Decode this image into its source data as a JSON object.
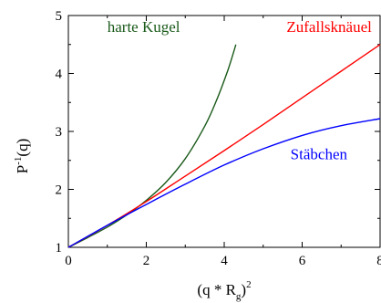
{
  "chart_data": {
    "type": "line",
    "xlabel": {
      "main": "(q * R",
      "sub": "g",
      "close": ")",
      "sup": "2"
    },
    "ylabel": {
      "main": "P",
      "sup": "-1",
      "tail": "(q)"
    },
    "xlim": [
      0,
      8
    ],
    "ylim": [
      1,
      5
    ],
    "x_ticks": [
      0,
      2,
      4,
      6,
      8
    ],
    "x_tick_labels": [
      "0",
      "2",
      "4",
      "6",
      "8"
    ],
    "y_ticks": [
      1,
      2,
      3,
      4,
      5
    ],
    "y_tick_labels": [
      "1",
      "2",
      "3",
      "4",
      "5"
    ],
    "grid": false,
    "series": [
      {
        "name": "harte Kugel",
        "color": "#1a5a1a",
        "x": [
          0,
          0.5,
          1.0,
          1.5,
          2.0,
          2.5,
          3.0,
          3.5,
          3.8,
          4.1,
          4.3
        ],
        "y": [
          1.0,
          1.17,
          1.35,
          1.56,
          1.81,
          2.12,
          2.53,
          3.09,
          3.53,
          4.07,
          4.5
        ]
      },
      {
        "name": "Zufallsknäuel",
        "color": "#ff0000",
        "x": [
          0,
          1,
          2,
          3,
          4,
          5,
          6,
          7,
          8
        ],
        "y": [
          1.0,
          1.38,
          1.79,
          2.23,
          2.67,
          3.12,
          3.58,
          4.04,
          4.5
        ]
      },
      {
        "name": "Stäbchen",
        "color": "#0000ff",
        "x": [
          0,
          1,
          2,
          3,
          4,
          5,
          6,
          7,
          8
        ],
        "y": [
          1.0,
          1.38,
          1.74,
          2.09,
          2.42,
          2.7,
          2.93,
          3.1,
          3.22
        ]
      }
    ]
  }
}
